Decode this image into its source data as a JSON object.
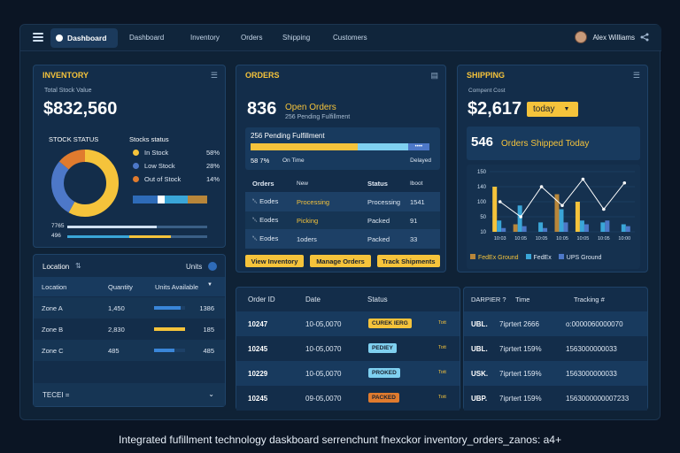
{
  "topbar": {
    "active_tab": "Dashboard",
    "nav": [
      "Dashboard",
      "Inventory",
      "Orders",
      "Shipping",
      "Customers"
    ],
    "user_name": "Alex Williams"
  },
  "inventory": {
    "title": "INVENTORY",
    "stock_label": "Total Stock Value",
    "stock_value": "$832,560",
    "status_title": "STOCK STATUS",
    "legend_title": "Stocks status",
    "legend": [
      {
        "label": "In Stock",
        "pct": "58%",
        "color": "#f5c33b",
        "value": 58
      },
      {
        "label": "Low Stock",
        "pct": "28%",
        "color": "#4d78c8",
        "value": 28
      },
      {
        "label": "Out of Stock",
        "pct": "14%",
        "color": "#e07b2e",
        "value": 14
      }
    ],
    "bar1_label": "7765",
    "bar2_label": "496"
  },
  "orders": {
    "title": "ORDERS",
    "open_value": "836",
    "open_label": "Open Orders",
    "open_sub": "256 Pending Fulfillment",
    "progress_label": "256 Pending Fulfillment",
    "progress_dots": "••••",
    "ontime_pct": "58 7%",
    "ontime_label": "On Time",
    "delayed_label": "Delayed",
    "table_headers": [
      "Orders",
      "New",
      "Status",
      "Iboot"
    ],
    "rows": [
      {
        "id": "␀ Eodes",
        "c2": "Processing",
        "status": "Processing",
        "n": "1541"
      },
      {
        "id": "␀ Eodes",
        "c2": "Picking",
        "status": "Packed",
        "n": "91"
      },
      {
        "id": "␀ Eodes",
        "c2": "1oders",
        "status": "Packed",
        "n": "33"
      }
    ],
    "buttons": [
      "View Inventory",
      "Manage Orders",
      "Track Shipments"
    ]
  },
  "shipping": {
    "title": "SHIPPING",
    "cost_label": "Compent Cost",
    "cost_value": "$2,617",
    "period": "today",
    "shipped_value": "546",
    "shipped_label": "Orders Shipped Today",
    "legend": [
      {
        "label": "FedEx Ground",
        "color": "#b8863a"
      },
      {
        "label": "FedEx",
        "color": "#3aa6d8"
      },
      {
        "label": "UPS Ground",
        "color": "#4d78c8"
      }
    ]
  },
  "chart_data": {
    "type": "bar",
    "categories": [
      "10:03",
      "10:05",
      "10:05",
      "10:05",
      "10:05",
      "10:05",
      "10:00"
    ],
    "yticks": [
      "150",
      "140",
      "100",
      "50",
      "10"
    ],
    "series": [
      {
        "name": "FedEx Ground",
        "values": [
          120,
          20,
          0,
          100,
          80,
          0,
          0
        ]
      },
      {
        "name": "FedEx",
        "values": [
          30,
          70,
          25,
          60,
          30,
          25,
          20
        ]
      },
      {
        "name": "UPS Ground",
        "values": [
          10,
          15,
          10,
          25,
          20,
          30,
          15
        ]
      }
    ],
    "line": [
      80,
      40,
      120,
      70,
      140,
      60,
      130
    ],
    "ylim": [
      0,
      160
    ]
  },
  "location": {
    "title": "Location",
    "units_label": "Units",
    "headers": [
      "Location",
      "Quantity",
      "Units Available"
    ],
    "rows": [
      {
        "zone": "Zone A",
        "qty": "1,450",
        "avail": "1386",
        "color": "#3a86d8",
        "fill": 0.85
      },
      {
        "zone": "Zone B",
        "qty": "2,830",
        "avail": "185",
        "color": "#f5c33b",
        "fill": 1.0
      },
      {
        "zone": "Zone C",
        "qty": "485",
        "avail": "485",
        "color": "#3a86d8",
        "fill": 0.65
      }
    ],
    "footer": "TECEI ="
  },
  "orders_table": {
    "headers": [
      "Order ID",
      "Date",
      "Status"
    ],
    "rows": [
      {
        "id": "10247",
        "date": "10-05,0070",
        "status": "CUREK IERG",
        "extra": "Tott",
        "pill": "#f5c33b"
      },
      {
        "id": "10245",
        "date": "10-05,0070",
        "status": "PEDIEY",
        "extra": "Tott",
        "pill": "#7fd0f0"
      },
      {
        "id": "10229",
        "date": "10-05,0070",
        "status": "PROKED",
        "extra": "Tott",
        "pill": "#7fd0f0"
      },
      {
        "id": "10245",
        "date": "09-05,0070",
        "status": "PACKED",
        "extra": "Tott",
        "pill": "#e07b2e"
      }
    ]
  },
  "tracking": {
    "headers": [
      "DARPIER ?",
      "Time",
      "Tracking #"
    ],
    "rows": [
      {
        "carrier": "UBL.",
        "time": "7iprtert 2666",
        "num": "o:0000060000070"
      },
      {
        "carrier": "UBL.",
        "time": "7iprtert 159%",
        "num": "1563000000033"
      },
      {
        "carrier": "USK.",
        "time": "7iprtert 159%",
        "num": "1563000000033"
      },
      {
        "carrier": "UBP.",
        "time": "7iprtert 159%",
        "num": "1563000000007233"
      }
    ]
  },
  "caption": "Integrated fufillment technology daskboard serrenchunt fnexckor inventory_orders_zanos: a4+"
}
